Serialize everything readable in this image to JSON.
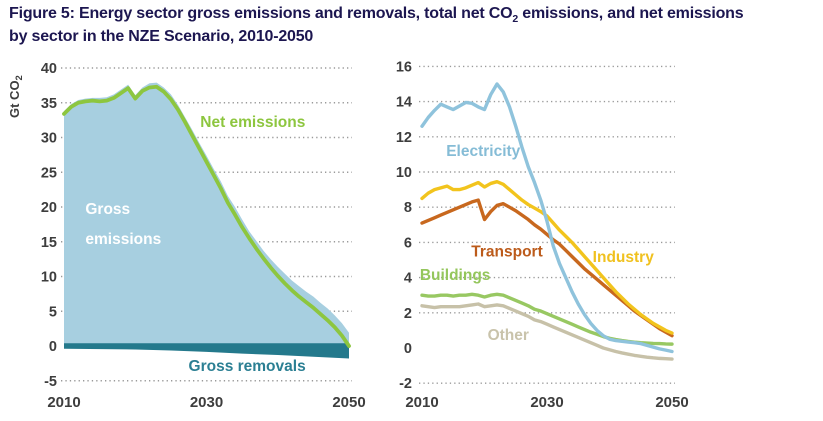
{
  "figure": {
    "title_line1_part1": "Figure 5: Energy sector gross emissions and removals, total net CO",
    "title_line1_sub": "2",
    "title_line1_part2": " emissions, and net emissions",
    "title_line2": "by sector in the NZE Scenario, 2010-2050"
  },
  "colors": {
    "title": "#1c1650",
    "axis_text": "#3d3d3d",
    "gridline": "#9a9a9a",
    "gross_area": "#a7cfe0",
    "net_line": "#8dc63f",
    "removals": "#24798c",
    "removals_label": "#2b7f93",
    "white": "#ffffff",
    "electricity": "#8fc3dc",
    "electricity_label": "#85bcd6",
    "industry": "#f2c41d",
    "industry_label": "#f0c11f",
    "transport": "#c8681e",
    "transport_label": "#bc5b1b",
    "buildings": "#98c862",
    "buildings_label": "#94c65c",
    "other": "#c7c1a8",
    "other_label": "#c9c3ab"
  },
  "chart_data": [
    {
      "id": "emissions-removals",
      "type": "area",
      "ylabel": "Gt CO",
      "ylabel_sub": "2",
      "xlabel": "",
      "xlim": [
        2010,
        2050
      ],
      "ylim": [
        -5,
        40
      ],
      "grid": true,
      "legend_position": "inline-annotations",
      "xticks": [
        2010,
        2030,
        2050
      ],
      "yticks": [
        40,
        35,
        30,
        25,
        20,
        15,
        10,
        5,
        0,
        -5
      ],
      "grid_yticks": [
        40,
        35,
        30,
        25,
        20,
        15,
        10,
        5,
        -5
      ],
      "x": [
        2010,
        2011,
        2012,
        2013,
        2014,
        2015,
        2016,
        2017,
        2018,
        2019,
        2020,
        2021,
        2022,
        2023,
        2024,
        2025,
        2026,
        2027,
        2028,
        2029,
        2030,
        2031,
        2032,
        2033,
        2034,
        2035,
        2036,
        2037,
        2038,
        2039,
        2040,
        2041,
        2042,
        2043,
        2044,
        2045,
        2046,
        2047,
        2048,
        2049,
        2050
      ],
      "series": [
        {
          "name": "Gross emissions",
          "kind": "area",
          "color_key": "gross_area",
          "values": [
            33.8,
            34.8,
            35.4,
            35.6,
            35.7,
            35.7,
            35.8,
            36.2,
            36.9,
            37.6,
            36.1,
            37.2,
            37.8,
            37.9,
            37.2,
            36.2,
            34.7,
            32.9,
            31.1,
            29.2,
            27.4,
            25.5,
            23.7,
            21.6,
            20.0,
            18.2,
            16.5,
            15.1,
            13.7,
            12.5,
            11.4,
            10.4,
            9.4,
            8.6,
            7.8,
            7.1,
            6.2,
            5.4,
            4.4,
            3.3,
            1.9
          ]
        },
        {
          "name": "Gross removals",
          "kind": "band",
          "color_key": "removals",
          "band_top": 0.4,
          "keypoints": [
            [
              2010,
              -0.4
            ],
            [
              2020,
              -0.5
            ],
            [
              2025,
              -0.65
            ],
            [
              2030,
              -0.85
            ],
            [
              2035,
              -1.1
            ],
            [
              2040,
              -1.3
            ],
            [
              2045,
              -1.55
            ],
            [
              2050,
              -1.8
            ]
          ]
        },
        {
          "name": "Net emissions",
          "kind": "line",
          "color_key": "net_line",
          "width": 3.8,
          "values": [
            33.4,
            34.4,
            35.0,
            35.2,
            35.3,
            35.2,
            35.3,
            35.7,
            36.4,
            37.1,
            35.6,
            36.7,
            37.2,
            37.3,
            36.6,
            35.5,
            34.0,
            32.2,
            30.3,
            28.4,
            26.5,
            24.6,
            22.7,
            20.6,
            18.9,
            17.1,
            15.5,
            14.0,
            12.6,
            11.3,
            10.1,
            9.0,
            8.0,
            7.1,
            6.3,
            5.5,
            4.6,
            3.7,
            2.7,
            1.5,
            0.0
          ]
        }
      ],
      "labels": [
        {
          "text": "Net emissions",
          "year": 2036.5,
          "value": 31.5,
          "color_key": "net_line",
          "anchor": "middle"
        },
        {
          "text": "Gross",
          "year": 2013,
          "value": 19.0,
          "color_key": "white",
          "anchor": "start"
        },
        {
          "text": "emissions",
          "year": 2013,
          "value": 14.7,
          "color_key": "white",
          "anchor": "start"
        },
        {
          "text": "Gross removals",
          "year": 2035.7,
          "value": -3.6,
          "color_key": "removals_label",
          "anchor": "middle"
        }
      ]
    },
    {
      "id": "net-by-sector",
      "type": "line",
      "ylabel": "",
      "xlabel": "",
      "xlim": [
        2010,
        2050
      ],
      "ylim": [
        -2,
        16
      ],
      "grid": true,
      "legend_position": "inline-annotations",
      "xticks": [
        2010,
        2030,
        2050
      ],
      "yticks": [
        16,
        14,
        12,
        10,
        8,
        6,
        4,
        2,
        0,
        -2
      ],
      "grid_yticks": [
        16,
        14,
        12,
        10,
        8,
        6,
        4,
        2,
        -2
      ],
      "x": [
        2010,
        2011,
        2012,
        2013,
        2014,
        2015,
        2016,
        2017,
        2018,
        2019,
        2020,
        2021,
        2022,
        2023,
        2024,
        2025,
        2026,
        2027,
        2028,
        2029,
        2030,
        2031,
        2032,
        2033,
        2034,
        2035,
        2036,
        2037,
        2038,
        2039,
        2040,
        2041,
        2042,
        2043,
        2044,
        2045,
        2046,
        2047,
        2048,
        2049,
        2050
      ],
      "series": [
        {
          "name": "Other",
          "kind": "line",
          "color_key": "other",
          "width": 3.4,
          "values": [
            2.4,
            2.35,
            2.3,
            2.35,
            2.35,
            2.35,
            2.35,
            2.4,
            2.45,
            2.5,
            2.35,
            2.4,
            2.45,
            2.4,
            2.25,
            2.1,
            1.95,
            1.8,
            1.6,
            1.5,
            1.35,
            1.2,
            1.05,
            0.9,
            0.75,
            0.6,
            0.45,
            0.3,
            0.15,
            0.0,
            -0.1,
            -0.2,
            -0.28,
            -0.35,
            -0.42,
            -0.47,
            -0.52,
            -0.56,
            -0.59,
            -0.61,
            -0.63
          ]
        },
        {
          "name": "Buildings",
          "kind": "line",
          "color_key": "buildings",
          "width": 3.4,
          "values": [
            3.0,
            2.95,
            2.95,
            3.0,
            3.0,
            2.95,
            3.0,
            3.0,
            3.05,
            3.0,
            2.9,
            3.0,
            3.05,
            3.0,
            2.85,
            2.7,
            2.55,
            2.4,
            2.2,
            2.1,
            1.95,
            1.8,
            1.65,
            1.5,
            1.35,
            1.2,
            1.05,
            0.9,
            0.78,
            0.65,
            0.55,
            0.48,
            0.42,
            0.37,
            0.33,
            0.3,
            0.28,
            0.26,
            0.25,
            0.23,
            0.22
          ]
        },
        {
          "name": "Transport",
          "kind": "line",
          "color_key": "transport",
          "width": 3.4,
          "values": [
            7.1,
            7.25,
            7.4,
            7.55,
            7.7,
            7.85,
            8.0,
            8.15,
            8.3,
            8.4,
            7.3,
            7.75,
            8.1,
            8.2,
            8.0,
            7.8,
            7.55,
            7.3,
            7.0,
            6.75,
            6.45,
            6.15,
            5.9,
            5.55,
            5.2,
            4.85,
            4.5,
            4.2,
            3.9,
            3.6,
            3.3,
            3.0,
            2.7,
            2.4,
            2.1,
            1.85,
            1.6,
            1.35,
            1.1,
            0.9,
            0.7
          ]
        },
        {
          "name": "Industry",
          "kind": "line",
          "color_key": "industry",
          "width": 3.4,
          "values": [
            8.5,
            8.8,
            9.0,
            9.1,
            9.2,
            9.0,
            9.0,
            9.1,
            9.25,
            9.4,
            9.15,
            9.35,
            9.45,
            9.3,
            9.0,
            8.7,
            8.4,
            8.15,
            7.95,
            7.75,
            7.5,
            7.1,
            6.7,
            6.35,
            6.0,
            5.6,
            5.2,
            4.8,
            4.4,
            4.0,
            3.6,
            3.2,
            2.85,
            2.5,
            2.2,
            1.9,
            1.65,
            1.4,
            1.2,
            1.0,
            0.85
          ]
        },
        {
          "name": "Electricity",
          "kind": "line",
          "color_key": "electricity",
          "width": 3.4,
          "values": [
            12.6,
            13.1,
            13.5,
            13.85,
            13.7,
            13.55,
            13.75,
            13.95,
            13.9,
            13.7,
            13.55,
            14.4,
            15.0,
            14.55,
            13.7,
            12.6,
            11.4,
            10.3,
            9.4,
            8.4,
            7.2,
            5.8,
            4.8,
            4.0,
            3.2,
            2.5,
            1.9,
            1.4,
            1.0,
            0.7,
            0.5,
            0.42,
            0.38,
            0.34,
            0.3,
            0.25,
            0.15,
            0.05,
            -0.05,
            -0.12,
            -0.2
          ]
        }
      ],
      "labels": [
        {
          "text": "Electricity",
          "year": 2019.8,
          "value": 10.9,
          "color_key": "electricity_label",
          "anchor": "middle"
        },
        {
          "text": "Transport",
          "year": 2023.6,
          "value": 5.2,
          "color_key": "transport_label",
          "anchor": "middle"
        },
        {
          "text": "Industry",
          "year": 2042.2,
          "value": 4.9,
          "color_key": "industry_label",
          "anchor": "middle"
        },
        {
          "text": "Buildings",
          "year": 2015.3,
          "value": 3.85,
          "color_key": "buildings_label",
          "anchor": "middle"
        },
        {
          "text": "Other",
          "year": 2023.8,
          "value": 0.45,
          "color_key": "other_label",
          "anchor": "middle"
        }
      ]
    }
  ]
}
